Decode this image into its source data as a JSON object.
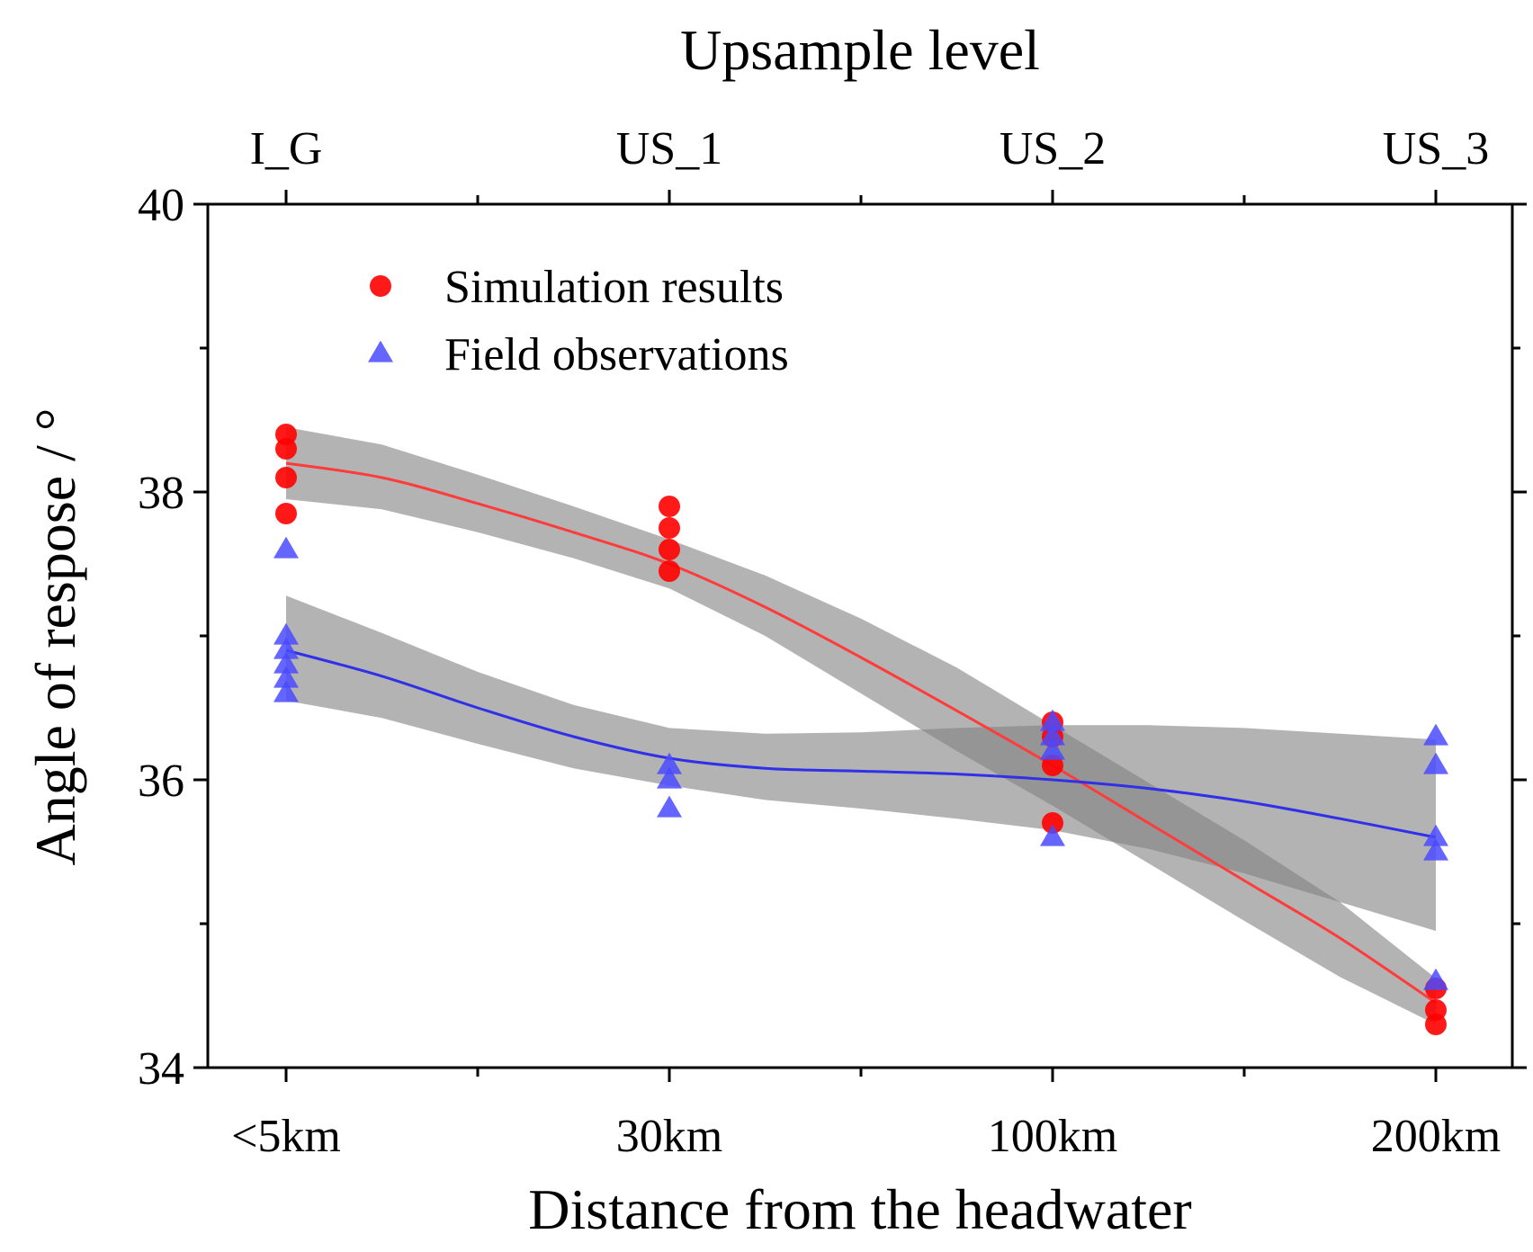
{
  "chart_data": {
    "type": "scatter",
    "top_axis_title": "Upsample level",
    "top_categories": [
      "I_G",
      "US_1",
      "US_2",
      "US_3"
    ],
    "xlabel": "Distance from the headwater",
    "ylabel": "Angle of respose / °",
    "categories": [
      "<5km",
      "30km",
      "100km",
      "200km"
    ],
    "ylim": [
      34,
      40
    ],
    "yticks": [
      "34",
      "36",
      "38",
      "40"
    ],
    "y_tick_values": [
      34,
      36,
      38,
      40
    ],
    "y_minor_tick_values": [
      35,
      37,
      39
    ],
    "legend_position": "top-left",
    "series": [
      {
        "name": "Simulation results",
        "marker": "circle",
        "color": "#ff0000",
        "fit_color": "#ff3b3b",
        "points": [
          {
            "x": 0,
            "y": 38.4
          },
          {
            "x": 0,
            "y": 38.3
          },
          {
            "x": 0,
            "y": 38.1
          },
          {
            "x": 0,
            "y": 37.85
          },
          {
            "x": 1,
            "y": 37.9
          },
          {
            "x": 1,
            "y": 37.75
          },
          {
            "x": 1,
            "y": 37.6
          },
          {
            "x": 1,
            "y": 37.45
          },
          {
            "x": 2,
            "y": 36.4
          },
          {
            "x": 2,
            "y": 36.3
          },
          {
            "x": 2,
            "y": 36.1
          },
          {
            "x": 2,
            "y": 35.7
          },
          {
            "x": 3,
            "y": 34.55
          },
          {
            "x": 3,
            "y": 34.4
          },
          {
            "x": 3,
            "y": 34.3
          }
        ],
        "fit": [
          {
            "x": 0,
            "y": 38.2,
            "lo": 37.95,
            "hi": 38.45
          },
          {
            "x": 0.25,
            "y": 38.1,
            "lo": 37.88,
            "hi": 38.33
          },
          {
            "x": 0.5,
            "y": 37.92,
            "lo": 37.72,
            "hi": 38.12
          },
          {
            "x": 0.75,
            "y": 37.72,
            "lo": 37.54,
            "hi": 37.9
          },
          {
            "x": 1,
            "y": 37.5,
            "lo": 37.33,
            "hi": 37.67
          },
          {
            "x": 1.25,
            "y": 37.2,
            "lo": 37.0,
            "hi": 37.42
          },
          {
            "x": 1.5,
            "y": 36.85,
            "lo": 36.6,
            "hi": 37.12
          },
          {
            "x": 1.75,
            "y": 36.48,
            "lo": 36.2,
            "hi": 36.78
          },
          {
            "x": 2,
            "y": 36.1,
            "lo": 35.82,
            "hi": 36.38
          },
          {
            "x": 2.25,
            "y": 35.7,
            "lo": 35.42,
            "hi": 35.98
          },
          {
            "x": 2.5,
            "y": 35.3,
            "lo": 35.02,
            "hi": 35.58
          },
          {
            "x": 2.75,
            "y": 34.9,
            "lo": 34.63,
            "hi": 35.15
          },
          {
            "x": 3,
            "y": 34.45,
            "lo": 34.3,
            "hi": 34.62
          }
        ]
      },
      {
        "name": "Field observations",
        "marker": "triangle",
        "color": "#4a4aff",
        "fit_color": "#3030e8",
        "points": [
          {
            "x": 0,
            "y": 37.6
          },
          {
            "x": 0,
            "y": 37.0
          },
          {
            "x": 0,
            "y": 36.9
          },
          {
            "x": 0,
            "y": 36.8
          },
          {
            "x": 0,
            "y": 36.7
          },
          {
            "x": 0,
            "y": 36.6
          },
          {
            "x": 1,
            "y": 36.1
          },
          {
            "x": 1,
            "y": 36.0
          },
          {
            "x": 1,
            "y": 35.8
          },
          {
            "x": 2,
            "y": 36.4
          },
          {
            "x": 2,
            "y": 36.3
          },
          {
            "x": 2,
            "y": 36.2
          },
          {
            "x": 2,
            "y": 35.6
          },
          {
            "x": 3,
            "y": 36.3
          },
          {
            "x": 3,
            "y": 36.1
          },
          {
            "x": 3,
            "y": 35.6
          },
          {
            "x": 3,
            "y": 35.5
          },
          {
            "x": 3,
            "y": 34.6
          }
        ],
        "fit": [
          {
            "x": 0,
            "y": 36.9,
            "lo": 36.55,
            "hi": 37.28
          },
          {
            "x": 0.25,
            "y": 36.72,
            "lo": 36.43,
            "hi": 37.02
          },
          {
            "x": 0.5,
            "y": 36.5,
            "lo": 36.25,
            "hi": 36.75
          },
          {
            "x": 0.75,
            "y": 36.3,
            "lo": 36.08,
            "hi": 36.52
          },
          {
            "x": 1,
            "y": 36.15,
            "lo": 35.96,
            "hi": 36.36
          },
          {
            "x": 1.25,
            "y": 36.08,
            "lo": 35.86,
            "hi": 36.32
          },
          {
            "x": 1.5,
            "y": 36.06,
            "lo": 35.8,
            "hi": 36.33
          },
          {
            "x": 1.75,
            "y": 36.04,
            "lo": 35.73,
            "hi": 36.36
          },
          {
            "x": 2,
            "y": 36.0,
            "lo": 35.65,
            "hi": 36.38
          },
          {
            "x": 2.25,
            "y": 35.94,
            "lo": 35.52,
            "hi": 36.38
          },
          {
            "x": 2.5,
            "y": 35.85,
            "lo": 35.35,
            "hi": 36.36
          },
          {
            "x": 2.75,
            "y": 35.73,
            "lo": 35.15,
            "hi": 36.32
          },
          {
            "x": 3,
            "y": 35.6,
            "lo": 34.95,
            "hi": 36.28
          }
        ]
      }
    ]
  }
}
